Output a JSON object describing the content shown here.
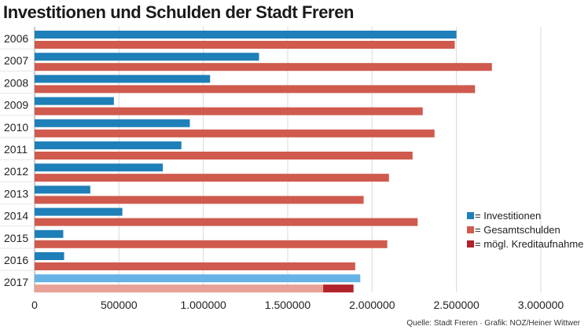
{
  "chart_data": {
    "type": "bar",
    "title": "Investitionen und Schulden der Stadt Freren",
    "categories": [
      "2006",
      "2007",
      "2008",
      "2009",
      "2010",
      "2011",
      "2012",
      "2013",
      "2014",
      "2015",
      "2016",
      "2017"
    ],
    "series": [
      {
        "name": "= Investitionen",
        "color": "#1f7fb8",
        "values": [
          2500000,
          1330000,
          1040000,
          470000,
          920000,
          870000,
          760000,
          330000,
          520000,
          170000,
          175000,
          1930000
        ],
        "highlight_last_color": "#66b3e6"
      },
      {
        "name": "= Gesamtschulden",
        "color": "#cf5a4d",
        "values": [
          2490000,
          2710000,
          2610000,
          2300000,
          2370000,
          2240000,
          2100000,
          1950000,
          2270000,
          2090000,
          1900000,
          1710000
        ],
        "highlight_last_color": "#e8a196"
      },
      {
        "name": "= mögl. Kreditaufnahme",
        "color": "#b2222a",
        "values": [
          0,
          0,
          0,
          0,
          0,
          0,
          0,
          0,
          0,
          0,
          0,
          180000
        ]
      }
    ],
    "xlim": [
      0,
      3000000
    ],
    "xticks": [
      0,
      500000,
      1000000,
      1500000,
      2000000,
      2500000,
      3000000
    ],
    "xtick_labels": [
      "0",
      "500000",
      "1.000000",
      "1.500000",
      "2.000000",
      "2.500000",
      "3.000000"
    ],
    "grid": "vertical",
    "legend": "bottom-right"
  },
  "source": "Quelle: Stadt Freren  ·  Grafik: NOZ/Heiner Wittwer"
}
